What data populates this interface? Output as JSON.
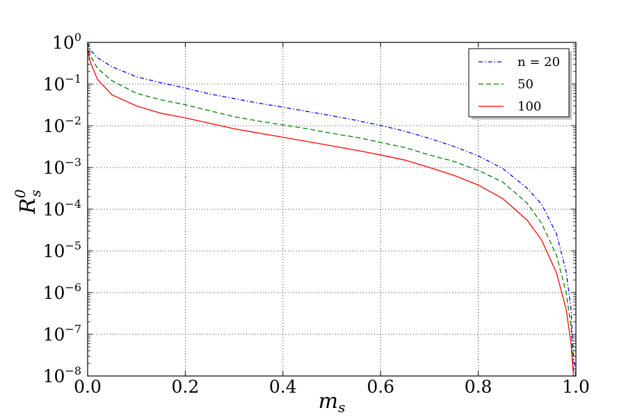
{
  "chart_data": {
    "type": "line",
    "xlabel": {
      "base": "m",
      "sub": "s"
    },
    "ylabel": {
      "base": "R",
      "sub": "s",
      "sup": "0"
    },
    "xlim": [
      0.0,
      1.0
    ],
    "ylim": [
      1e-08,
      1
    ],
    "yscale": "log",
    "grid": true,
    "legend_position": "top-right",
    "x_ticks": [
      "0.0",
      "0.2",
      "0.4",
      "0.6",
      "0.8",
      "1.0"
    ],
    "y_ticks": [
      {
        "base": "10",
        "exp": "0"
      },
      {
        "base": "10",
        "exp": "−1"
      },
      {
        "base": "10",
        "exp": "−2"
      },
      {
        "base": "10",
        "exp": "−3"
      },
      {
        "base": "10",
        "exp": "−4"
      },
      {
        "base": "10",
        "exp": "−5"
      },
      {
        "base": "10",
        "exp": "−6"
      },
      {
        "base": "10",
        "exp": "−7"
      },
      {
        "base": "10",
        "exp": "−8"
      }
    ],
    "series": [
      {
        "name": "n = 20",
        "color": "#0000ff",
        "dash": "dashdot",
        "x": [
          0.0,
          0.005,
          0.02,
          0.05,
          0.1,
          0.15,
          0.2,
          0.25,
          0.3,
          0.35,
          0.4,
          0.45,
          0.5,
          0.55,
          0.6,
          0.65,
          0.7,
          0.75,
          0.8,
          0.85,
          0.9,
          0.93,
          0.96,
          0.98,
          0.99,
          0.995,
          1.0
        ],
        "y": [
          1.0,
          0.66,
          0.43,
          0.26,
          0.15,
          0.108,
          0.08,
          0.058,
          0.045,
          0.035,
          0.028,
          0.022,
          0.0175,
          0.0135,
          0.0102,
          0.0074,
          0.005,
          0.0032,
          0.0019,
          0.00095,
          0.00032,
          0.00013,
          2.6e-05,
          3.2e-06,
          4e-07,
          3e-08,
          1e-08
        ]
      },
      {
        "name": "50",
        "color": "#007f00",
        "dash": "dashed",
        "x": [
          0.0,
          0.005,
          0.02,
          0.05,
          0.1,
          0.15,
          0.2,
          0.25,
          0.3,
          0.35,
          0.4,
          0.45,
          0.5,
          0.55,
          0.6,
          0.65,
          0.7,
          0.75,
          0.8,
          0.85,
          0.9,
          0.93,
          0.96,
          0.98,
          0.99,
          0.995,
          1.0
        ],
        "y": [
          1.0,
          0.5,
          0.24,
          0.12,
          0.06,
          0.042,
          0.032,
          0.023,
          0.0165,
          0.013,
          0.0105,
          0.0085,
          0.0066,
          0.0053,
          0.004,
          0.003,
          0.002,
          0.0014,
          0.00085,
          0.00045,
          0.00014,
          4.5e-05,
          8e-06,
          1e-06,
          1.5e-07,
          1.5e-08,
          1e-08
        ]
      },
      {
        "name": "100",
        "color": "#ff0000",
        "dash": "solid",
        "x": [
          0.0,
          0.005,
          0.02,
          0.05,
          0.1,
          0.15,
          0.2,
          0.25,
          0.3,
          0.35,
          0.4,
          0.45,
          0.5,
          0.55,
          0.6,
          0.65,
          0.7,
          0.75,
          0.8,
          0.85,
          0.9,
          0.93,
          0.96,
          0.98,
          0.99,
          0.995,
          1.0
        ],
        "y": [
          0.7,
          0.35,
          0.13,
          0.055,
          0.03,
          0.02,
          0.0155,
          0.0115,
          0.0085,
          0.0067,
          0.0053,
          0.0042,
          0.0033,
          0.0026,
          0.002,
          0.0015,
          0.001,
          0.00065,
          0.00038,
          0.00018,
          5.5e-05,
          1.8e-05,
          3e-06,
          4e-07,
          6e-08,
          1e-08,
          1e-08
        ]
      }
    ]
  }
}
